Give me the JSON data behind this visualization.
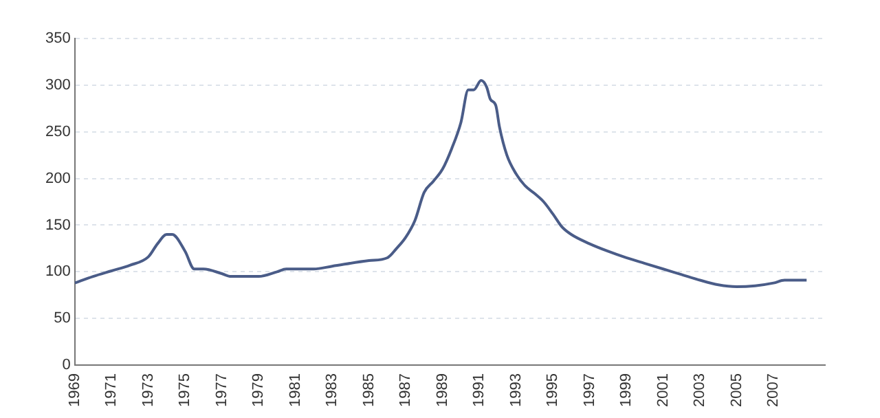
{
  "chart_data": {
    "type": "line",
    "x": [
      1969,
      1970,
      1971,
      1972,
      1973,
      1973.5,
      1974,
      1974.3,
      1975,
      1975.5,
      1976,
      1977,
      1977.5,
      1979,
      1980,
      1980.5,
      1982,
      1983,
      1985,
      1986,
      1986.5,
      1987,
      1987.5,
      1988,
      1988.5,
      1989,
      1989.5,
      1990,
      1990.4,
      1990.7,
      1991.1,
      1991.4,
      1991.6,
      1991.9,
      1992.1,
      1992.5,
      1993,
      1993.5,
      1994,
      1994.5,
      1995,
      1995.5,
      1996,
      1997,
      1998,
      1999,
      2000,
      2001,
      2002,
      2003,
      2004,
      2005,
      2006,
      2007,
      2007.6,
      2008.8
    ],
    "series": [
      {
        "color": "#4a5c88",
        "values": [
          88,
          95,
          101,
          107,
          116,
          130,
          140,
          140,
          122,
          103,
          103,
          98,
          95,
          95,
          100,
          103,
          103,
          106,
          112,
          115,
          125,
          137,
          155,
          185,
          197,
          210,
          232,
          260,
          295,
          295,
          305,
          298,
          285,
          278,
          255,
          225,
          205,
          192,
          184,
          175,
          162,
          148,
          140,
          130,
          122,
          115,
          109,
          103,
          97,
          91,
          86,
          84,
          85,
          88,
          91,
          91
        ]
      }
    ],
    "xlim": [
      1969,
      2009.8
    ],
    "xticks": [
      1969,
      1971,
      1973,
      1975,
      1977,
      1979,
      1981,
      1983,
      1985,
      1987,
      1989,
      1991,
      1993,
      1995,
      1997,
      1999,
      2001,
      2003,
      2005,
      2007
    ],
    "ylim": [
      0,
      350
    ],
    "yticks": [
      0,
      50,
      100,
      150,
      200,
      250,
      300,
      350
    ],
    "grid": "y",
    "legend": false,
    "marker": "none",
    "line_style": "solid"
  }
}
